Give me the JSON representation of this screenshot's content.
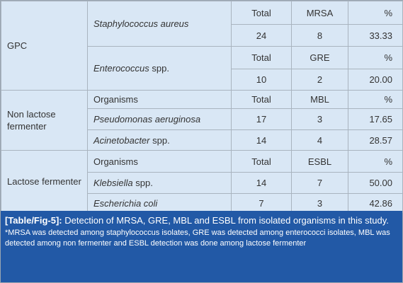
{
  "table": {
    "gpc": {
      "label": "GPC",
      "blocks": [
        {
          "genus": "Staphylococcus aureus",
          "suffix": "",
          "header": [
            "Total",
            "MRSA",
            "%"
          ],
          "values": [
            "24",
            "8",
            "33.33"
          ]
        },
        {
          "genus": "Enterococcus",
          "suffix": "spp.",
          "header": [
            "Total",
            "GRE",
            "%"
          ],
          "values": [
            "10",
            "2",
            "20.00"
          ]
        }
      ]
    },
    "non_lactose": {
      "label": "Non lactose fermenter",
      "header": [
        "Organisms",
        "Total",
        "MBL",
        "%"
      ],
      "rows": [
        {
          "genus": "Pseudomonas aeruginosa",
          "suffix": "",
          "values": [
            "17",
            "3",
            "17.65"
          ]
        },
        {
          "genus": "Acinetobacter",
          "suffix": "spp.",
          "values": [
            "14",
            "4",
            "28.57"
          ]
        }
      ]
    },
    "lactose": {
      "label": "Lactose fermenter",
      "header": [
        "Organisms",
        "Total",
        "ESBL",
        "%"
      ],
      "rows": [
        {
          "genus": "Klebsiella",
          "suffix": "spp.",
          "values": [
            "14",
            "7",
            "50.00"
          ]
        },
        {
          "genus": "Escherichia coli",
          "suffix": "",
          "values": [
            "7",
            "3",
            "42.86"
          ]
        }
      ]
    }
  },
  "caption": {
    "label": "[Table/Fig-5]:",
    "text": "Detection of MRSA, GRE, MBL and ESBL from isolated organisms in this study.",
    "note": "*MRSA was detected among staphylococcus isolates, GRE was detected among enterococci isolates, MBL was detected among non fermenter and ESBL detection was done among lactose fermenter"
  }
}
